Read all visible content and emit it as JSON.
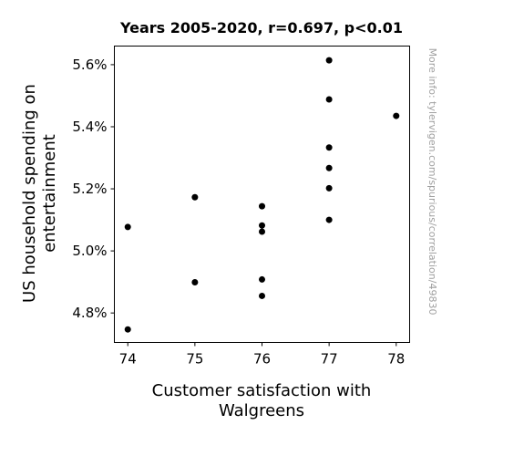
{
  "chart_data": {
    "type": "scatter",
    "title": "Years 2005-2020, r=0.697, p<0.01",
    "xlabel_lines": [
      "Customer satisfaction with",
      "Walgreens"
    ],
    "ylabel_lines": [
      "US household spending on",
      "entertainment"
    ],
    "watermark": "More info: tylervigen.com/spurious/correlation/49830",
    "xlim": [
      73.8,
      78.2
    ],
    "ylim": [
      4.705,
      5.66
    ],
    "x_ticks": [
      74,
      75,
      76,
      77,
      78
    ],
    "y_ticks": [
      4.8,
      5.0,
      5.2,
      5.4,
      5.6
    ],
    "x_tick_labels": [
      "74",
      "75",
      "76",
      "77",
      "78"
    ],
    "y_tick_labels": [
      "4.8%",
      "5.0%",
      "5.2%",
      "5.4%",
      "5.6%"
    ],
    "grid": false,
    "marker_color": "#000000",
    "points": [
      {
        "x": 74,
        "y": 5.077
      },
      {
        "x": 74,
        "y": 4.747
      },
      {
        "x": 75,
        "y": 5.173
      },
      {
        "x": 75,
        "y": 4.899
      },
      {
        "x": 76,
        "y": 5.144
      },
      {
        "x": 76,
        "y": 5.082
      },
      {
        "x": 76,
        "y": 5.062
      },
      {
        "x": 76,
        "y": 4.908
      },
      {
        "x": 76,
        "y": 4.855
      },
      {
        "x": 77,
        "y": 5.614
      },
      {
        "x": 77,
        "y": 5.488
      },
      {
        "x": 77,
        "y": 5.333
      },
      {
        "x": 77,
        "y": 5.267
      },
      {
        "x": 77,
        "y": 5.202
      },
      {
        "x": 77,
        "y": 5.1
      },
      {
        "x": 78,
        "y": 5.435
      }
    ]
  }
}
